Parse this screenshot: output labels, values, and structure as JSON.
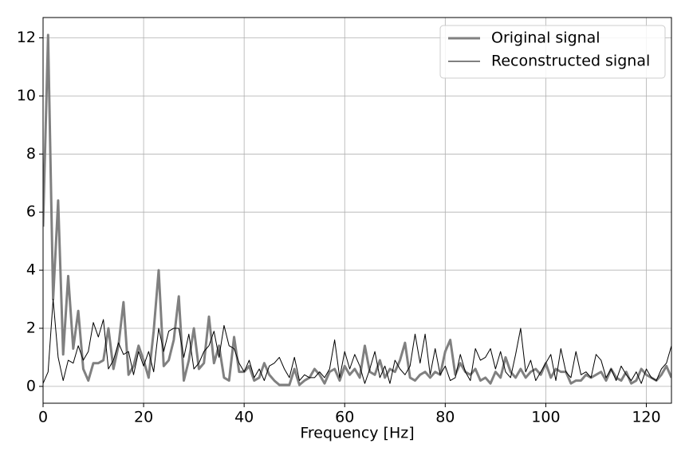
{
  "chart_data": {
    "type": "line",
    "xlabel": "Frequency [Hz]",
    "x": [
      0,
      1,
      2,
      3,
      4,
      5,
      6,
      7,
      8,
      9,
      10,
      11,
      12,
      13,
      14,
      15,
      16,
      17,
      18,
      19,
      20,
      21,
      22,
      23,
      24,
      25,
      26,
      27,
      28,
      29,
      30,
      31,
      32,
      33,
      34,
      35,
      36,
      37,
      38,
      39,
      40,
      41,
      42,
      43,
      44,
      45,
      46,
      47,
      48,
      49,
      50,
      51,
      52,
      53,
      54,
      55,
      56,
      57,
      58,
      59,
      60,
      61,
      62,
      63,
      64,
      65,
      66,
      67,
      68,
      69,
      70,
      71,
      72,
      73,
      74,
      75,
      76,
      77,
      78,
      79,
      80,
      81,
      82,
      83,
      84,
      85,
      86,
      87,
      88,
      89,
      90,
      91,
      92,
      93,
      94,
      95,
      96,
      97,
      98,
      99,
      100,
      101,
      102,
      103,
      104,
      105,
      106,
      107,
      108,
      109,
      110,
      111,
      112,
      113,
      114,
      115,
      116,
      117,
      118,
      119,
      120,
      121,
      122,
      123,
      124,
      125
    ],
    "series": [
      {
        "name": "Original signal",
        "color": "#808080",
        "values": [
          5.5,
          12.1,
          3.0,
          6.4,
          1.1,
          3.8,
          1.3,
          2.6,
          0.6,
          0.2,
          0.8,
          0.8,
          0.9,
          2.0,
          0.6,
          1.4,
          2.9,
          0.4,
          0.7,
          1.4,
          0.9,
          0.3,
          1.9,
          4.0,
          0.7,
          0.9,
          1.6,
          3.1,
          0.2,
          0.9,
          2.0,
          0.6,
          0.8,
          2.4,
          0.8,
          1.4,
          0.3,
          0.2,
          1.7,
          0.5,
          0.5,
          0.7,
          0.2,
          0.3,
          0.8,
          0.4,
          0.2,
          0.05,
          0.05,
          0.05,
          0.6,
          0.05,
          0.2,
          0.3,
          0.6,
          0.4,
          0.1,
          0.5,
          0.6,
          0.2,
          0.7,
          0.4,
          0.6,
          0.3,
          1.4,
          0.5,
          0.4,
          0.9,
          0.3,
          0.6,
          0.5,
          0.9,
          1.5,
          0.3,
          0.2,
          0.4,
          0.5,
          0.3,
          0.5,
          0.4,
          1.2,
          1.6,
          0.4,
          0.8,
          0.5,
          0.4,
          0.6,
          0.2,
          0.3,
          0.1,
          0.5,
          0.3,
          1.0,
          0.5,
          0.3,
          0.6,
          0.3,
          0.5,
          0.6,
          0.4,
          0.8,
          0.3,
          0.6,
          0.5,
          0.5,
          0.1,
          0.2,
          0.2,
          0.4,
          0.3,
          0.4,
          0.5,
          0.2,
          0.6,
          0.3,
          0.2,
          0.5,
          0.1,
          0.2,
          0.6,
          0.4,
          0.3,
          0.2,
          0.4,
          0.7,
          0.3
        ]
      },
      {
        "name": "Reconstructed signal",
        "color": "#000000",
        "values": [
          0.1,
          0.5,
          3.0,
          1.0,
          0.2,
          0.9,
          0.8,
          1.4,
          0.9,
          1.2,
          2.2,
          1.7,
          2.3,
          0.6,
          0.9,
          1.5,
          1.1,
          1.2,
          0.4,
          1.2,
          0.7,
          1.2,
          0.5,
          2.0,
          1.2,
          1.9,
          2.0,
          2.0,
          1.0,
          1.8,
          0.6,
          0.8,
          1.2,
          1.4,
          1.9,
          1.0,
          2.1,
          1.4,
          1.3,
          0.8,
          0.5,
          0.9,
          0.3,
          0.6,
          0.2,
          0.7,
          0.8,
          1.0,
          0.6,
          0.3,
          1.0,
          0.2,
          0.4,
          0.3,
          0.3,
          0.5,
          0.3,
          0.6,
          1.6,
          0.3,
          1.2,
          0.6,
          1.1,
          0.7,
          0.1,
          0.6,
          1.2,
          0.3,
          0.7,
          0.1,
          0.9,
          0.6,
          0.4,
          0.7,
          1.8,
          0.8,
          1.8,
          0.4,
          1.3,
          0.4,
          0.7,
          0.2,
          0.3,
          1.1,
          0.5,
          0.2,
          1.3,
          0.9,
          1.0,
          1.3,
          0.6,
          1.2,
          0.5,
          0.3,
          1.1,
          2.0,
          0.5,
          0.9,
          0.2,
          0.5,
          0.8,
          1.1,
          0.2,
          1.3,
          0.5,
          0.3,
          1.2,
          0.4,
          0.5,
          0.3,
          1.1,
          0.9,
          0.3,
          0.6,
          0.2,
          0.7,
          0.4,
          0.2,
          0.5,
          0.1,
          0.6,
          0.3,
          0.2,
          0.6,
          0.8,
          1.4
        ]
      }
    ],
    "xlim": [
      0,
      125
    ],
    "ylim": [
      -0.58,
      12.7
    ],
    "xticks": [
      0,
      20,
      40,
      60,
      80,
      100,
      120
    ],
    "yticks": [
      0,
      2,
      4,
      6,
      8,
      10,
      12
    ],
    "grid": true,
    "legend": "upper right"
  }
}
